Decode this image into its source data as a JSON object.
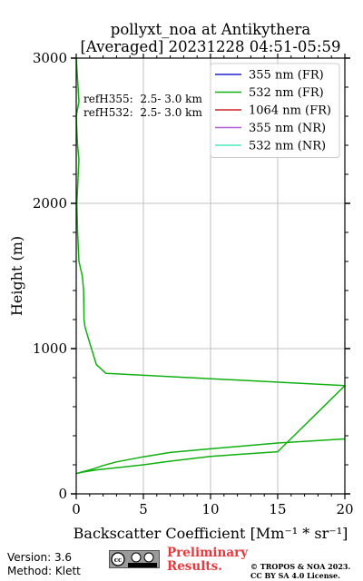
{
  "chart_data": {
    "type": "line",
    "title": "pollyxt_noa at Antikythera",
    "subtitle": "[Averaged] 20231228 04:51-05:59",
    "xlabel": "Backscatter Coefficient [Mm⁻¹ * sr⁻¹]",
    "ylabel": "Height (m)",
    "xlim": [
      0,
      20
    ],
    "ylim": [
      0,
      3000
    ],
    "xticks": [
      0,
      5,
      10,
      15,
      20
    ],
    "yticks": [
      0,
      1000,
      2000,
      3000
    ],
    "grid": true,
    "legend_position": "top-right",
    "annotations": [
      "refH355:  2.5- 3.0 km",
      "refH532:  2.5- 3.0 km"
    ],
    "series": [
      {
        "name": "355 nm (FR)",
        "color": "#2020d0",
        "x": [],
        "y": []
      },
      {
        "name": "532 nm (FR)",
        "color": "#10b010",
        "x": [
          20,
          15,
          10,
          7,
          5,
          3,
          2,
          1.2,
          0.4,
          0,
          0.5,
          1.5,
          3,
          5,
          7,
          10,
          15,
          20,
          2.2,
          1.5,
          1.0,
          0.65,
          0.58,
          0.55,
          0.45,
          0.2,
          0.1,
          0.05,
          0.15,
          0.2,
          0.1,
          0.05,
          0.0,
          0.2,
          0.1,
          0.0
        ],
        "y": [
          378,
          350,
          310,
          285,
          255,
          220,
          195,
          170,
          150,
          140,
          150,
          165,
          180,
          200,
          225,
          258,
          290,
          745,
          830,
          890,
          1040,
          1150,
          1200,
          1400,
          1500,
          1600,
          1800,
          2000,
          2200,
          2300,
          2400,
          2500,
          2600,
          2700,
          2850,
          3000
        ]
      },
      {
        "name": "1064 nm (FR)",
        "color": "#d02020",
        "x": [],
        "y": []
      },
      {
        "name": "355 nm (NR)",
        "color": "#b060d8",
        "x": [],
        "y": []
      },
      {
        "name": "532 nm (NR)",
        "color": "#50e8c0",
        "x": [],
        "y": []
      }
    ]
  },
  "footer": {
    "version": "Version: 3.6",
    "method": "Method: Klett",
    "preliminary_1": "Preliminary",
    "preliminary_2": "Results.",
    "copyright_1": "© TROPOS & NOA 2023.",
    "copyright_2": "CC BY SA 4.0 License."
  }
}
